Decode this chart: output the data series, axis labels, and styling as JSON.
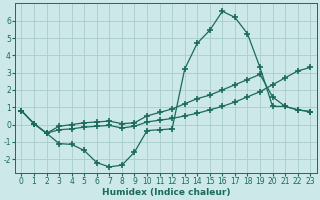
{
  "xlabel": "Humidex (Indice chaleur)",
  "bg_color": "#cce8e8",
  "grid_color": "#aacccc",
  "line_color": "#1a6b5a",
  "marker": "+",
  "marker_size": 5,
  "marker_lw": 1.2,
  "xlim": [
    -0.5,
    23.5
  ],
  "ylim": [
    -2.8,
    7.0
  ],
  "xticks": [
    0,
    1,
    2,
    3,
    4,
    5,
    6,
    7,
    8,
    9,
    10,
    11,
    12,
    13,
    14,
    15,
    16,
    17,
    18,
    19,
    20,
    21,
    22,
    23
  ],
  "yticks": [
    -2,
    -1,
    0,
    1,
    2,
    3,
    4,
    5,
    6
  ],
  "line1_x": [
    0,
    1,
    2,
    3,
    4,
    5,
    6,
    7,
    8,
    9,
    10,
    11,
    12,
    13,
    14,
    15,
    16,
    17,
    18,
    19,
    20,
    21,
    22,
    23
  ],
  "line1_y": [
    0.8,
    0.05,
    -0.5,
    -1.1,
    -1.15,
    -1.5,
    -2.2,
    -2.45,
    -2.35,
    -1.6,
    -0.35,
    -0.3,
    -0.25,
    3.2,
    4.7,
    5.45,
    6.55,
    6.2,
    5.25,
    3.3,
    1.05,
    1.05,
    0.85,
    0.75
  ],
  "line2_x": [
    0,
    1,
    2,
    3,
    4,
    5,
    6,
    7,
    8,
    9,
    10,
    11,
    12,
    13,
    14,
    15,
    16,
    17,
    18,
    19,
    20,
    21,
    22,
    23
  ],
  "line2_y": [
    0.8,
    0.05,
    -0.5,
    -0.1,
    0.0,
    0.1,
    0.15,
    0.2,
    0.05,
    0.1,
    0.5,
    0.7,
    0.9,
    1.2,
    1.5,
    1.7,
    2.0,
    2.3,
    2.6,
    2.9,
    1.6,
    1.05,
    0.85,
    0.75
  ],
  "line3_x": [
    0,
    1,
    2,
    3,
    4,
    5,
    6,
    7,
    8,
    9,
    10,
    11,
    12,
    13,
    14,
    15,
    16,
    17,
    18,
    19,
    20,
    21,
    22,
    23
  ],
  "line3_y": [
    0.8,
    0.05,
    -0.5,
    -0.3,
    -0.25,
    -0.15,
    -0.1,
    -0.05,
    -0.2,
    -0.1,
    0.15,
    0.25,
    0.35,
    0.5,
    0.65,
    0.85,
    1.05,
    1.3,
    1.6,
    1.9,
    2.3,
    2.7,
    3.1,
    3.3
  ]
}
